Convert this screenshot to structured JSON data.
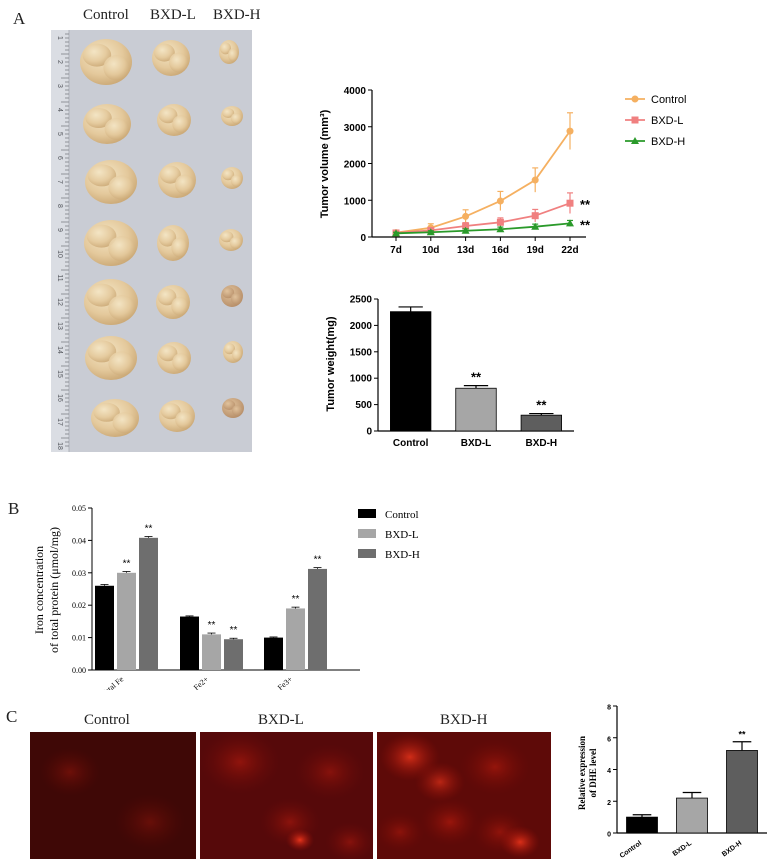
{
  "panels": {
    "a": "A",
    "b": "B",
    "c": "C"
  },
  "photo": {
    "headers": [
      "Control",
      "BXD-L",
      "BXD-H"
    ],
    "ruler_marks": [
      "1",
      "2",
      "3",
      "4",
      "5",
      "6",
      "7",
      "8",
      "9",
      "10",
      "11",
      "12",
      "13",
      "14",
      "15",
      "16",
      "17",
      "18"
    ]
  },
  "chart_data": [
    {
      "id": "tumor-volume",
      "type": "line",
      "title": "",
      "xlabel": "",
      "ylabel": "Tumor volume (mm³)",
      "categories": [
        "7d",
        "10d",
        "13d",
        "16d",
        "19d",
        "22d"
      ],
      "ylim": [
        0,
        4000
      ],
      "yticks": [
        0,
        1000,
        2000,
        3000,
        4000
      ],
      "legend_position": "right",
      "series": [
        {
          "name": "Control",
          "values": [
            120,
            250,
            560,
            980,
            1550,
            2880
          ],
          "errors": [
            60,
            110,
            180,
            260,
            330,
            500
          ],
          "color": "#F5B061",
          "marker": "circle",
          "annotation": ""
        },
        {
          "name": "BXD-L",
          "values": [
            110,
            180,
            300,
            400,
            580,
            920
          ],
          "errors": [
            40,
            60,
            90,
            120,
            170,
            280
          ],
          "color": "#F08080",
          "marker": "square",
          "annotation": "**"
        },
        {
          "name": "BXD-H",
          "values": [
            100,
            130,
            170,
            210,
            280,
            370
          ],
          "errors": [
            30,
            40,
            50,
            60,
            70,
            80
          ],
          "color": "#2A9A2A",
          "marker": "triangle",
          "annotation": "**"
        }
      ]
    },
    {
      "id": "tumor-weight",
      "type": "bar",
      "title": "",
      "xlabel": "",
      "ylabel": "Tumor weight(mg)",
      "categories": [
        "Control",
        "BXD-L",
        "BXD-H"
      ],
      "ylim": [
        0,
        2500
      ],
      "yticks": [
        0,
        500,
        1000,
        1500,
        2000,
        2500
      ],
      "values": [
        2260,
        810,
        300
      ],
      "errors": [
        90,
        50,
        30
      ],
      "colors": [
        "#000000",
        "#A6A6A6",
        "#5E5E5E"
      ],
      "annotations": [
        "",
        "**",
        "**"
      ]
    },
    {
      "id": "iron-concentration",
      "type": "bar",
      "title": "",
      "xlabel": "",
      "ylabel": [
        "Iron concentration",
        "of total protein (μmol/mg)"
      ],
      "categories": [
        "Total Fe",
        "Fe2+",
        "Fe3+"
      ],
      "ylim": [
        0,
        0.05
      ],
      "yticks": [
        "0.00",
        "0.01",
        "0.02",
        "0.03",
        "0.04",
        "0.05"
      ],
      "legend_position": "right",
      "series": [
        {
          "name": "Control",
          "values": [
            0.026,
            0.0165,
            0.01
          ],
          "errors": [
            0.0004,
            0.0002,
            0.0002
          ],
          "color": "#000000",
          "annotations": [
            "",
            "",
            ""
          ]
        },
        {
          "name": "BXD-L",
          "values": [
            0.03,
            0.011,
            0.019
          ],
          "errors": [
            0.0004,
            0.0004,
            0.0004
          ],
          "color": "#A6A6A6",
          "annotations": [
            "**",
            "**",
            "**"
          ]
        },
        {
          "name": "BXD-H",
          "values": [
            0.0408,
            0.0095,
            0.0312
          ],
          "errors": [
            0.0004,
            0.0003,
            0.0004
          ],
          "color": "#6E6E6E",
          "annotations": [
            "**",
            "**",
            "**"
          ]
        }
      ]
    },
    {
      "id": "dhe-expression",
      "type": "bar",
      "title": "",
      "xlabel": "",
      "ylabel": [
        "Relative expression",
        "of DHE level"
      ],
      "categories": [
        "Control",
        "BXD-L",
        "BXD-H"
      ],
      "ylim": [
        0,
        8
      ],
      "yticks": [
        0,
        2,
        4,
        6,
        8
      ],
      "values": [
        1.0,
        2.2,
        5.2
      ],
      "errors": [
        0.15,
        0.35,
        0.55
      ],
      "colors": [
        "#000000",
        "#A6A6A6",
        "#5E5E5E"
      ],
      "annotations": [
        "",
        "",
        "**"
      ]
    }
  ],
  "fluorescence": {
    "labels": [
      "Control",
      "BXD-L",
      "BXD-H"
    ]
  }
}
